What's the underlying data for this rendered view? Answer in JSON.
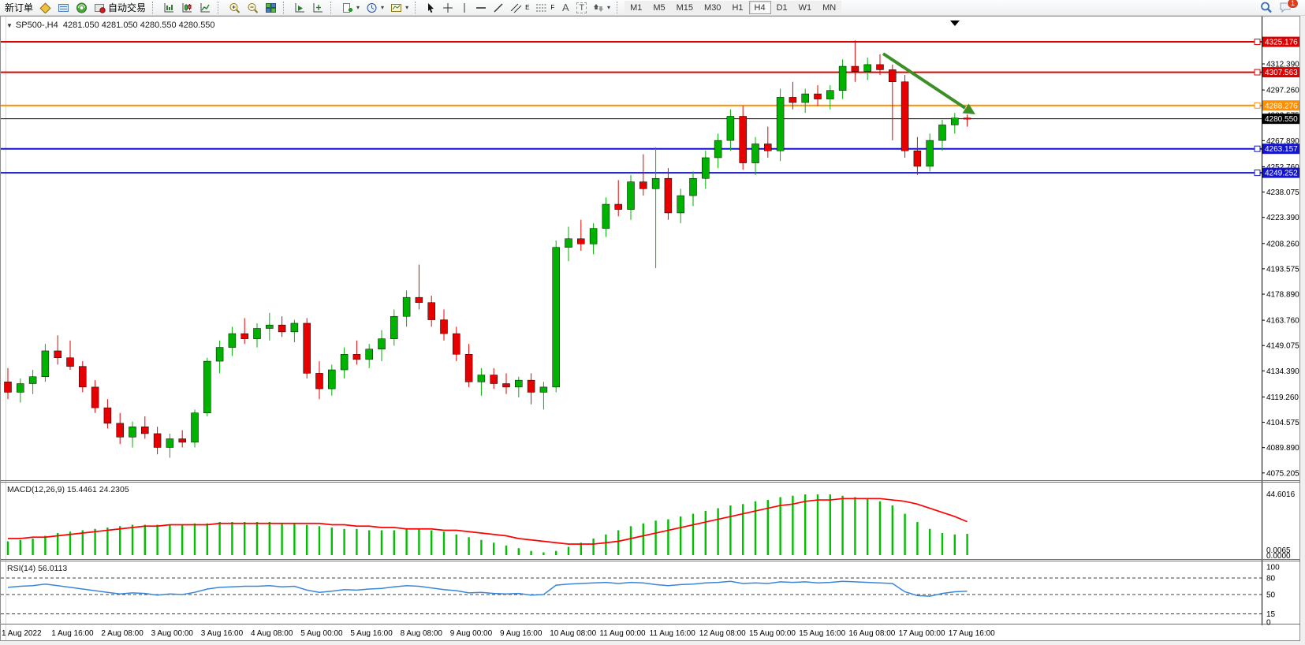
{
  "toolbar": {
    "new_order_label": "新订单",
    "auto_trading_label": "自动交易",
    "timeframes": [
      "M1",
      "M5",
      "M15",
      "M30",
      "H1",
      "H4",
      "D1",
      "W1",
      "MN"
    ],
    "active_timeframe": "H4",
    "notification_badge": "1",
    "tool_letters": {
      "channel": "E",
      "fibo": "F",
      "text": "A",
      "label": "T"
    }
  },
  "chart_header": {
    "dropdown_glyph": "▼",
    "symbol": "SP500-,H4",
    "ohlc": "4281.050 4281.050 4280.550 4280.550"
  },
  "price_axis": {
    "ticks": [
      "4312.390",
      "4297.260",
      "4282.575",
      "4267.890",
      "4252.760",
      "4238.075",
      "4223.390",
      "4208.260",
      "4193.575",
      "4178.890",
      "4163.760",
      "4149.075",
      "4134.390",
      "4119.260",
      "4104.575",
      "4089.890",
      "4075.205"
    ]
  },
  "hlines": [
    {
      "label": "4325.176",
      "price": 4325.176,
      "color": "#dc0000"
    },
    {
      "label": "4307.563",
      "price": 4307.563,
      "color": "#dc0000"
    },
    {
      "label": "4288.276",
      "price": 4288.276,
      "color": "#ff8e00"
    },
    {
      "label": "4263.157",
      "price": 4263.157,
      "color": "#1414cc"
    },
    {
      "label": "4249.252",
      "price": 4249.252,
      "color": "#1414cc"
    }
  ],
  "current_price": {
    "label": "4280.550",
    "price": 4280.55,
    "color": "#000000"
  },
  "time_axis": [
    "1 Aug 2022",
    "1 Aug 16:00",
    "2 Aug 08:00",
    "3 Aug 00:00",
    "3 Aug 16:00",
    "4 Aug 08:00",
    "5 Aug 00:00",
    "5 Aug 16:00",
    "8 Aug 08:00",
    "9 Aug 00:00",
    "9 Aug 16:00",
    "10 Aug 08:00",
    "11 Aug 00:00",
    "11 Aug 16:00",
    "12 Aug 08:00",
    "15 Aug 00:00",
    "15 Aug 16:00",
    "16 Aug 08:00",
    "17 Aug 00:00",
    "17 Aug 16:00"
  ],
  "macd": {
    "label": "MACD(12,26,9) 15.4461 24.2305",
    "axis_max": "44.6016",
    "axis_min": "0.0065",
    "axis_zero": "0.0000"
  },
  "rsi": {
    "label": "RSI(14) 56.0113",
    "axis_labels": [
      "100",
      "80",
      "50",
      "15",
      "0"
    ],
    "axis_values": [
      100,
      80,
      50,
      15,
      0
    ],
    "dashed_levels": [
      80,
      50,
      15
    ]
  },
  "annotations": {
    "trend_arrow_color": "#3a8f25"
  },
  "colors": {
    "bull": "#00b200",
    "bear": "#e60000",
    "macd_hist": "#00c000",
    "macd_signal": "#ff0000",
    "rsi_line": "#3a87d9"
  },
  "chart_data": {
    "type": "candlestick",
    "symbol": "SP500-",
    "timeframe": "H4",
    "y_range": [
      4071,
      4338
    ],
    "macd_range": [
      0,
      44.6016
    ],
    "rsi_range": [
      0,
      100
    ],
    "candles_ohlc": [
      [
        4128,
        4136,
        4118,
        4122
      ],
      [
        4122,
        4130,
        4116,
        4127
      ],
      [
        4127,
        4135,
        4121,
        4131
      ],
      [
        4131,
        4150,
        4128,
        4146
      ],
      [
        4146,
        4155,
        4138,
        4142
      ],
      [
        4142,
        4152,
        4135,
        4137
      ],
      [
        4137,
        4140,
        4122,
        4125
      ],
      [
        4125,
        4129,
        4110,
        4113
      ],
      [
        4113,
        4118,
        4101,
        4104
      ],
      [
        4104,
        4110,
        4092,
        4096
      ],
      [
        4096,
        4105,
        4090,
        4102
      ],
      [
        4102,
        4108,
        4095,
        4098
      ],
      [
        4098,
        4102,
        4086,
        4090
      ],
      [
        4090,
        4098,
        4084,
        4095
      ],
      [
        4095,
        4100,
        4090,
        4093
      ],
      [
        4093,
        4112,
        4090,
        4110
      ],
      [
        4110,
        4142,
        4108,
        4140
      ],
      [
        4140,
        4152,
        4133,
        4148
      ],
      [
        4148,
        4160,
        4143,
        4156
      ],
      [
        4156,
        4165,
        4150,
        4153
      ],
      [
        4153,
        4162,
        4148,
        4159
      ],
      [
        4159,
        4168,
        4152,
        4161
      ],
      [
        4161,
        4166,
        4154,
        4157
      ],
      [
        4157,
        4164,
        4151,
        4162
      ],
      [
        4162,
        4165,
        4130,
        4133
      ],
      [
        4133,
        4140,
        4118,
        4124
      ],
      [
        4124,
        4138,
        4120,
        4135
      ],
      [
        4135,
        4148,
        4130,
        4144
      ],
      [
        4144,
        4152,
        4138,
        4141
      ],
      [
        4141,
        4150,
        4136,
        4147
      ],
      [
        4147,
        4158,
        4140,
        4153
      ],
      [
        4153,
        4170,
        4149,
        4166
      ],
      [
        4166,
        4181,
        4160,
        4177
      ],
      [
        4177,
        4196,
        4170,
        4174
      ],
      [
        4174,
        4178,
        4160,
        4164
      ],
      [
        4164,
        4170,
        4152,
        4156
      ],
      [
        4156,
        4160,
        4140,
        4144
      ],
      [
        4144,
        4150,
        4125,
        4128
      ],
      [
        4128,
        4136,
        4120,
        4132
      ],
      [
        4132,
        4136,
        4124,
        4127
      ],
      [
        4127,
        4133,
        4121,
        4125
      ],
      [
        4125,
        4131,
        4119,
        4129
      ],
      [
        4129,
        4133,
        4115,
        4122
      ],
      [
        4122,
        4128,
        4112,
        4125
      ],
      [
        4125,
        4210,
        4122,
        4206
      ],
      [
        4206,
        4218,
        4198,
        4211
      ],
      [
        4211,
        4222,
        4204,
        4208
      ],
      [
        4208,
        4220,
        4202,
        4217
      ],
      [
        4217,
        4235,
        4212,
        4231
      ],
      [
        4231,
        4245,
        4224,
        4228
      ],
      [
        4228,
        4248,
        4222,
        4244
      ],
      [
        4244,
        4260,
        4236,
        4240
      ],
      [
        4240,
        4264,
        4194,
        4246
      ],
      [
        4246,
        4252,
        4222,
        4226
      ],
      [
        4226,
        4240,
        4220,
        4236
      ],
      [
        4236,
        4250,
        4230,
        4246
      ],
      [
        4246,
        4262,
        4240,
        4258
      ],
      [
        4258,
        4272,
        4252,
        4268
      ],
      [
        4268,
        4286,
        4262,
        4282
      ],
      [
        4282,
        4288,
        4251,
        4255
      ],
      [
        4255,
        4270,
        4248,
        4266
      ],
      [
        4266,
        4276,
        4258,
        4262
      ],
      [
        4262,
        4298,
        4256,
        4293
      ],
      [
        4293,
        4302,
        4286,
        4290
      ],
      [
        4290,
        4298,
        4284,
        4295
      ],
      [
        4295,
        4300,
        4288,
        4292
      ],
      [
        4292,
        4300,
        4286,
        4297
      ],
      [
        4297,
        4315,
        4292,
        4311
      ],
      [
        4311,
        4326,
        4302,
        4308
      ],
      [
        4308,
        4316,
        4303,
        4312
      ],
      [
        4312,
        4318,
        4306,
        4309
      ],
      [
        4309,
        4312,
        4268,
        4302
      ],
      [
        4302,
        4306,
        4258,
        4262
      ],
      [
        4262,
        4270,
        4248,
        4253
      ],
      [
        4253,
        4272,
        4250,
        4268
      ],
      [
        4268,
        4280,
        4262,
        4277
      ],
      [
        4277,
        4284,
        4272,
        4281
      ],
      [
        4281,
        4283,
        4276,
        4280.55
      ]
    ],
    "indicators": {
      "macd_histogram": [
        10,
        11,
        12,
        14,
        16,
        17,
        18,
        19,
        20,
        21,
        22,
        22,
        22,
        22,
        22,
        23,
        23,
        24,
        24,
        24,
        24,
        24,
        23,
        23,
        22,
        21,
        20,
        19,
        19,
        18,
        18,
        18,
        19,
        19,
        18,
        17,
        15,
        13,
        11,
        9,
        7,
        5,
        3,
        2,
        3,
        6,
        9,
        12,
        15,
        18,
        21,
        23,
        25,
        26,
        28,
        30,
        32,
        34,
        36,
        37,
        39,
        40,
        42,
        43,
        44,
        44,
        44,
        43,
        42,
        41,
        39,
        36,
        30,
        24,
        19,
        16,
        15,
        15.45
      ],
      "macd_signal": [
        12,
        12,
        13,
        13,
        14,
        15,
        16,
        17,
        18,
        19,
        20,
        21,
        21,
        22,
        22,
        22,
        22,
        23,
        23,
        23,
        23,
        23,
        23,
        23,
        23,
        23,
        22,
        22,
        21,
        21,
        20,
        20,
        19,
        19,
        19,
        18,
        18,
        17,
        16,
        15,
        14,
        12,
        11,
        10,
        9,
        8,
        8,
        8,
        9,
        10,
        12,
        14,
        16,
        18,
        20,
        22,
        24,
        26,
        28,
        30,
        32,
        34,
        36,
        37,
        39,
        40,
        40,
        41,
        41,
        41,
        41,
        40,
        39,
        37,
        34,
        31,
        28,
        24.23
      ],
      "rsi": [
        63,
        65,
        66,
        69,
        66,
        63,
        60,
        57,
        54,
        51,
        53,
        52,
        49,
        51,
        50,
        54,
        60,
        63,
        64,
        65,
        65,
        66,
        64,
        65,
        58,
        54,
        56,
        59,
        58,
        60,
        61,
        64,
        66,
        65,
        62,
        59,
        57,
        53,
        54,
        52,
        51,
        52,
        49,
        50,
        67,
        69,
        70,
        71,
        72,
        70,
        72,
        71,
        68,
        66,
        68,
        69,
        71,
        72,
        74,
        70,
        71,
        70,
        73,
        72,
        73,
        71,
        72,
        74,
        73,
        72,
        71,
        70,
        55,
        48,
        47,
        52,
        55,
        56.01
      ]
    }
  }
}
